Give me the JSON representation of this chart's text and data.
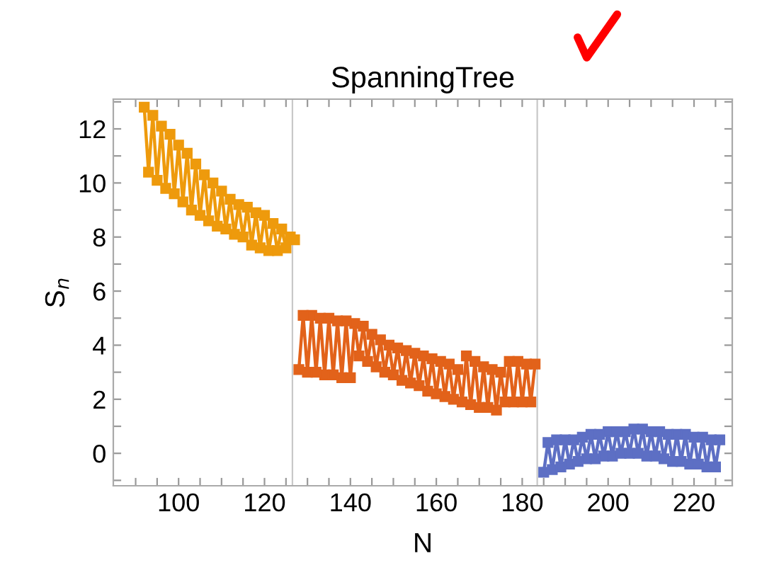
{
  "chart_data": {
    "type": "line",
    "title": "SpanningTree",
    "xlabel": "N",
    "ylabel": "S$_{n}$",
    "marker": "square",
    "grid": false,
    "legend": false,
    "xlim": [
      84.8,
      228.9
    ],
    "ylim": [
      -1.2,
      13.1
    ],
    "xticks": [
      {
        "value": 90,
        "label": null
      },
      {
        "value": 95,
        "label": null
      },
      100,
      {
        "value": 105,
        "label": null
      },
      {
        "value": 110,
        "label": null
      },
      {
        "value": 115,
        "label": null
      },
      120,
      {
        "value": 125,
        "label": null
      },
      {
        "value": 130,
        "label": null
      },
      {
        "value": 135,
        "label": null
      },
      140,
      {
        "value": 145,
        "label": null
      },
      {
        "value": 150,
        "label": null
      },
      {
        "value": 155,
        "label": null
      },
      160,
      {
        "value": 165,
        "label": null
      },
      {
        "value": 170,
        "label": null
      },
      {
        "value": 175,
        "label": null
      },
      180,
      {
        "value": 185,
        "label": null
      },
      {
        "value": 190,
        "label": null
      },
      {
        "value": 195,
        "label": null
      },
      200,
      {
        "value": 205,
        "label": null
      },
      {
        "value": 210,
        "label": null
      },
      {
        "value": 215,
        "label": null
      },
      220,
      {
        "value": 225,
        "label": null
      }
    ],
    "yticks": [
      {
        "value": -1,
        "label": null
      },
      0,
      {
        "value": 1,
        "label": null
      },
      2,
      {
        "value": 3,
        "label": null
      },
      4,
      {
        "value": 5,
        "label": null
      },
      6,
      {
        "value": 7,
        "label": null
      },
      8,
      {
        "value": 9,
        "label": null
      },
      10,
      {
        "value": 11,
        "label": null
      },
      12,
      {
        "value": 13,
        "label": null
      }
    ],
    "ref_lines": [
      {
        "axis": "x",
        "value": 126.5,
        "color": "#c8c8c8"
      },
      {
        "axis": "x",
        "value": 183.5,
        "color": "#c8c8c8"
      }
    ],
    "series": [
      {
        "color": "#ee9a0c",
        "x": [
          92,
          93,
          94,
          95,
          96,
          97,
          98,
          99,
          100,
          101,
          102,
          103,
          104,
          105,
          106,
          107,
          108,
          109,
          110,
          111,
          112,
          113,
          114,
          115,
          116,
          117,
          118,
          119,
          120,
          121,
          122,
          123,
          124,
          125,
          126,
          127
        ],
        "values": [
          12.8,
          10.4,
          12.5,
          10.1,
          12.1,
          9.8,
          11.8,
          9.6,
          11.4,
          9.3,
          11.1,
          9.0,
          10.7,
          8.8,
          10.3,
          8.6,
          10.0,
          8.4,
          9.7,
          8.3,
          9.4,
          8.1,
          9.2,
          8.0,
          9.1,
          7.7,
          8.9,
          7.6,
          8.8,
          7.5,
          8.5,
          7.5,
          8.3,
          7.6,
          8.0,
          7.9
        ]
      },
      {
        "color": "#e2621a",
        "x": [
          128,
          129,
          130,
          131,
          132,
          133,
          134,
          135,
          136,
          137,
          138,
          139,
          140,
          141,
          142,
          143,
          144,
          145,
          146,
          147,
          148,
          149,
          150,
          151,
          152,
          153,
          154,
          155,
          156,
          157,
          158,
          159,
          160,
          161,
          162,
          163,
          164,
          165,
          166,
          167,
          168,
          169,
          170,
          171,
          172,
          173,
          174,
          175,
          176,
          177,
          178,
          179,
          180,
          181,
          182,
          183
        ],
        "values": [
          3.1,
          5.1,
          3.0,
          5.1,
          3.0,
          5.0,
          2.9,
          5.0,
          2.9,
          4.9,
          2.8,
          4.9,
          2.8,
          4.8,
          3.6,
          4.7,
          3.4,
          4.4,
          3.2,
          4.2,
          3.0,
          4.0,
          2.9,
          3.9,
          2.7,
          3.8,
          2.6,
          3.7,
          2.5,
          3.6,
          2.3,
          3.5,
          2.2,
          3.4,
          2.1,
          3.3,
          2.0,
          3.1,
          1.9,
          3.6,
          1.8,
          3.4,
          1.7,
          3.2,
          1.7,
          3.1,
          1.6,
          3.0,
          1.9,
          3.4,
          1.9,
          3.4,
          1.9,
          3.3,
          1.9,
          3.3
        ]
      },
      {
        "color": "#5d6fc4",
        "x": [
          185,
          186,
          187,
          188,
          189,
          190,
          191,
          192,
          193,
          194,
          195,
          196,
          197,
          198,
          199,
          200,
          201,
          202,
          203,
          204,
          205,
          206,
          207,
          208,
          209,
          210,
          211,
          212,
          213,
          214,
          215,
          216,
          217,
          218,
          219,
          220,
          221,
          222,
          223,
          224,
          225,
          226
        ],
        "values": [
          -0.7,
          0.4,
          -0.6,
          0.5,
          -0.5,
          0.5,
          -0.4,
          0.5,
          -0.3,
          0.6,
          -0.2,
          0.7,
          -0.2,
          0.7,
          -0.1,
          0.8,
          -0.1,
          0.8,
          0.0,
          0.8,
          0.0,
          0.9,
          0.0,
          0.9,
          -0.1,
          0.8,
          -0.1,
          0.8,
          -0.2,
          0.7,
          -0.3,
          0.7,
          -0.3,
          0.7,
          -0.4,
          0.6,
          -0.4,
          0.6,
          -0.5,
          0.5,
          -0.5,
          0.5
        ]
      }
    ]
  }
}
